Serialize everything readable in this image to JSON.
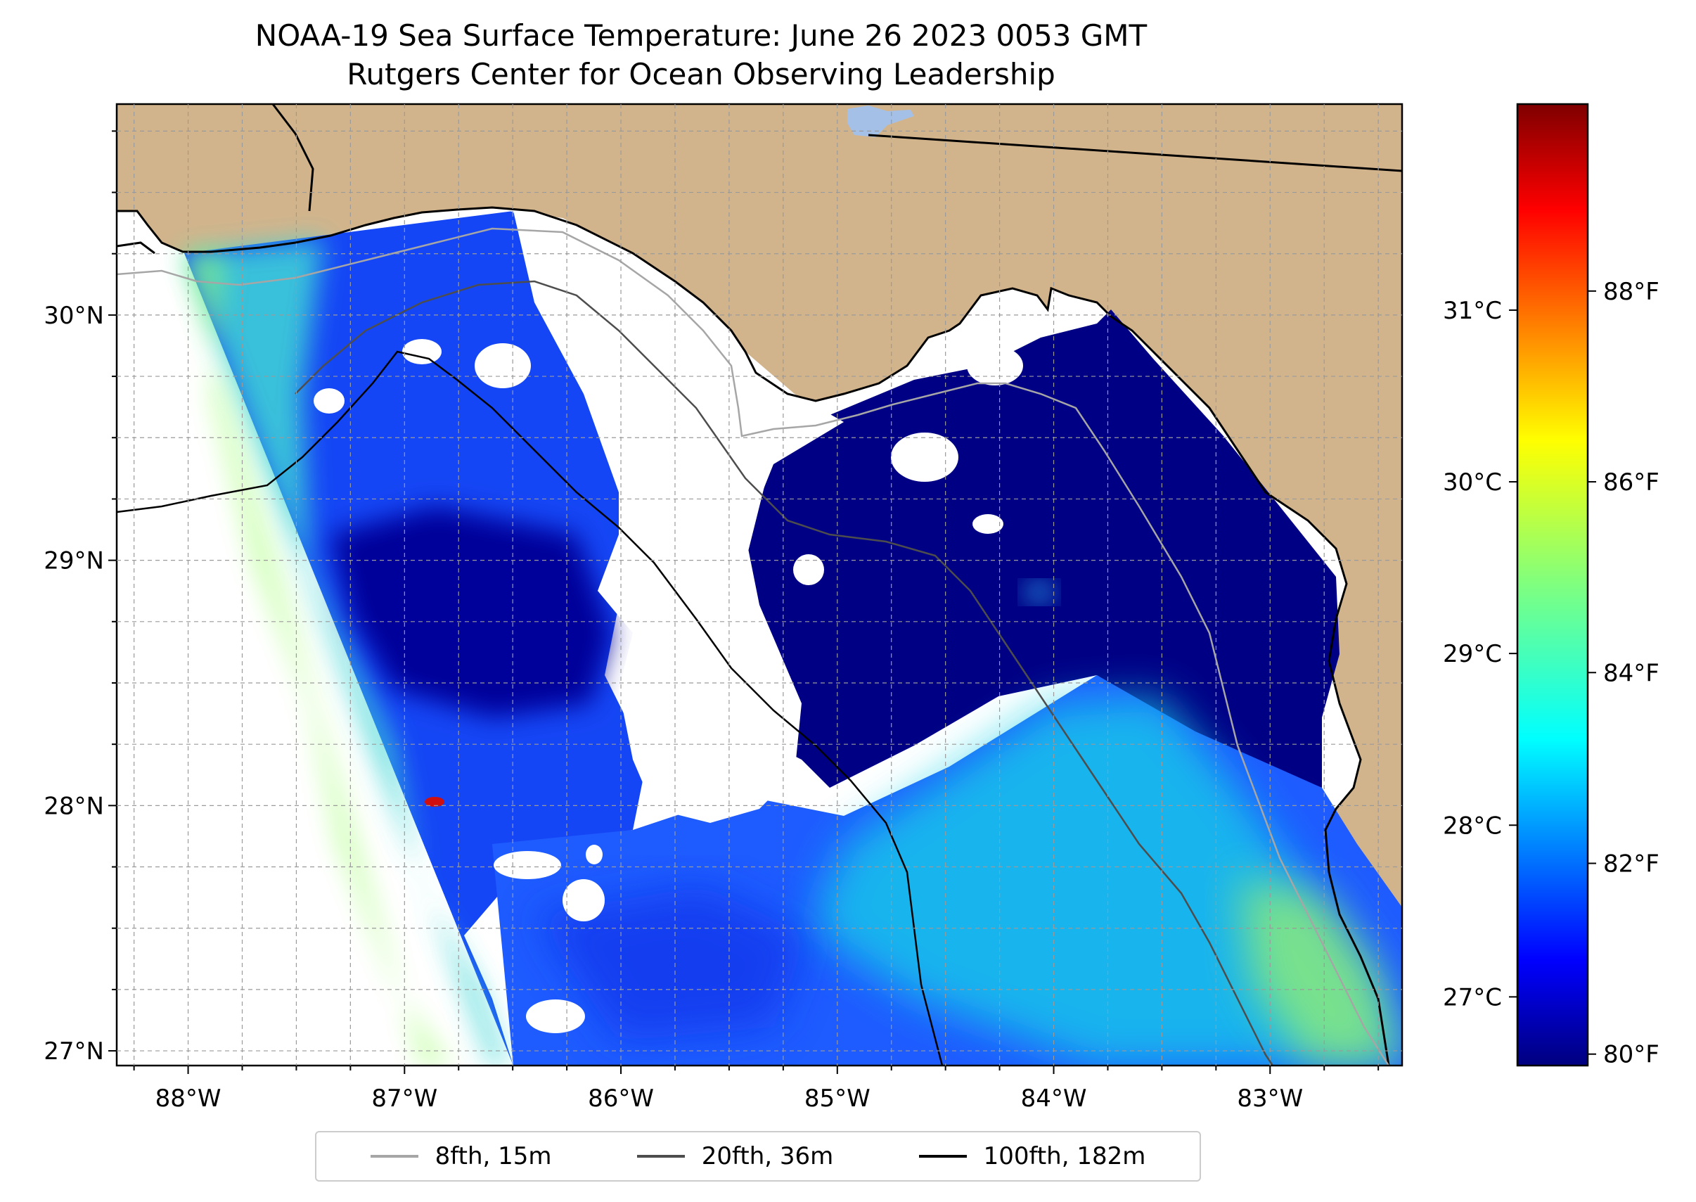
{
  "title": {
    "line1": "NOAA-19 Sea Surface Temperature: June 26 2023 0053 GMT",
    "line2": "Rutgers Center for Ocean Observing Leadership"
  },
  "map": {
    "lat_range": [
      26.94,
      30.86
    ],
    "lon_range": [
      -88.33,
      -82.39
    ],
    "lat_ticks": [
      {
        "value": 30,
        "label": "30°N"
      },
      {
        "value": 29,
        "label": "29°N"
      },
      {
        "value": 28,
        "label": "28°N"
      },
      {
        "value": 27,
        "label": "27°N"
      }
    ],
    "lon_ticks": [
      {
        "value": -88,
        "label": "88°W"
      },
      {
        "value": -87,
        "label": "87°W"
      },
      {
        "value": -86,
        "label": "86°W"
      },
      {
        "value": -85,
        "label": "85°W"
      },
      {
        "value": -84,
        "label": "84°W"
      },
      {
        "value": -83,
        "label": "83°W"
      }
    ],
    "colors": {
      "land": "#d2b48c",
      "no_data": "#ffffff",
      "coastline": "#000000",
      "lake": "#a5c0e6",
      "grid": "#9a9a9a"
    }
  },
  "colorbar": {
    "colormap": "jet",
    "range_c": [
      26.6,
      32.2
    ],
    "celsius_ticks": [
      {
        "value": 27,
        "label": "27°C"
      },
      {
        "value": 28,
        "label": "28°C"
      },
      {
        "value": 29,
        "label": "29°C"
      },
      {
        "value": 30,
        "label": "30°C"
      },
      {
        "value": 31,
        "label": "31°C"
      }
    ],
    "fahrenheit_ticks": [
      {
        "value": 80,
        "label": "80°F"
      },
      {
        "value": 82,
        "label": "82°F"
      },
      {
        "value": 84,
        "label": "84°F"
      },
      {
        "value": 86,
        "label": "86°F"
      },
      {
        "value": 88,
        "label": "88°F"
      }
    ]
  },
  "legend": {
    "items": [
      {
        "label": "8fth, 15m",
        "color": "#a6a6a6"
      },
      {
        "label": "20fth, 36m",
        "color": "#4d4d4d"
      },
      {
        "label": "100fth, 182m",
        "color": "#000000"
      }
    ]
  }
}
